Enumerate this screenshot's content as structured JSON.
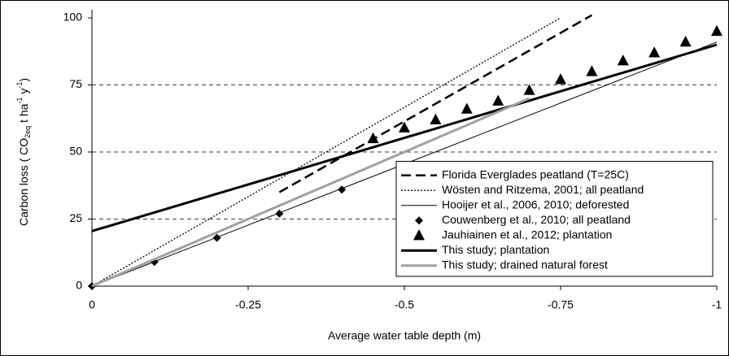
{
  "chart_data": {
    "type": "line",
    "y_label": [
      "Carbon loss ( CO",
      "2eq",
      " t ha",
      "-1",
      " y",
      "-1",
      ")"
    ],
    "x_label": "Average water table depth (m)",
    "xlim": [
      0,
      -1
    ],
    "xticks": [
      0,
      -0.25,
      -0.5,
      -0.75,
      -1
    ],
    "ylim": [
      0,
      100
    ],
    "yticks": [
      0,
      25,
      50,
      75,
      100
    ],
    "grid": true,
    "legend": "lower right",
    "series": [
      {
        "name": "Florida Everglades peatland (T=25C)",
        "kind": "line",
        "style": "dashed",
        "color": "#000000",
        "x": [
          -0.3,
          -0.8
        ],
        "values": [
          35,
          101
        ]
      },
      {
        "name": "Wösten and Ritzema, 2001; all peatland",
        "kind": "line",
        "style": "dotted",
        "color": "#000000",
        "x": [
          0,
          -0.75
        ],
        "values": [
          0,
          100
        ]
      },
      {
        "name": "Hooijer et al., 2006, 2010; deforested",
        "kind": "line",
        "style": "thin",
        "color": "#000000",
        "x": [
          0,
          -1
        ],
        "values": [
          0,
          91
        ]
      },
      {
        "name": "Couwenberg et al., 2010; all peatland",
        "kind": "scatter",
        "marker": "diamond",
        "color": "#000000",
        "x": [
          0,
          -0.1,
          -0.2,
          -0.3,
          -0.4,
          -0.5
        ],
        "values": [
          0,
          9,
          18,
          27,
          36,
          45
        ]
      },
      {
        "name": "Jauhiainen et al., 2012; plantation",
        "kind": "scatter",
        "marker": "triangle",
        "color": "#000000",
        "x": [
          -0.45,
          -0.5,
          -0.55,
          -0.6,
          -0.65,
          -0.7,
          -0.75,
          -0.8,
          -0.85,
          -0.9,
          -0.95,
          -1
        ],
        "values": [
          55,
          59,
          62,
          66,
          69,
          73,
          77,
          80,
          84,
          87,
          91,
          95
        ]
      },
      {
        "name": "This study; plantation",
        "kind": "line",
        "style": "thick",
        "color": "#000000",
        "x": [
          0,
          -1
        ],
        "values": [
          20.5,
          90
        ]
      },
      {
        "name": "This study; drained natural forest",
        "kind": "line",
        "style": "thick",
        "color": "#a0a0a0",
        "x": [
          0,
          -0.7
        ],
        "values": [
          0,
          70
        ]
      }
    ]
  }
}
